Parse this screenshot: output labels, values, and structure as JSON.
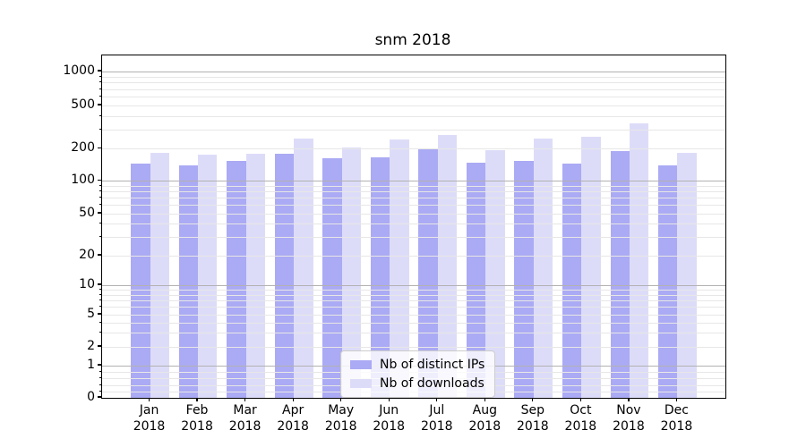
{
  "chart_data": {
    "type": "bar",
    "title": "snm 2018",
    "categories": [
      "Jan 2018",
      "Feb 2018",
      "Mar 2018",
      "Apr 2018",
      "May 2018",
      "Jun 2018",
      "Jul 2018",
      "Aug 2018",
      "Sep 2018",
      "Oct 2018",
      "Nov 2018",
      "Dec 2018"
    ],
    "x_labels": [
      [
        "Jan",
        "2018"
      ],
      [
        "Feb",
        "2018"
      ],
      [
        "Mar",
        "2018"
      ],
      [
        "Apr",
        "2018"
      ],
      [
        "May",
        "2018"
      ],
      [
        "Jun",
        "2018"
      ],
      [
        "Jul",
        "2018"
      ],
      [
        "Aug",
        "2018"
      ],
      [
        "Sep",
        "2018"
      ],
      [
        "Oct",
        "2018"
      ],
      [
        "Nov",
        "2018"
      ],
      [
        "Dec",
        "2018"
      ]
    ],
    "series": [
      {
        "name": "Nb of distinct IPs",
        "color": "#abaaf4",
        "values": [
          146,
          140,
          154,
          180,
          164,
          166,
          203,
          147,
          154,
          146,
          192,
          140
        ]
      },
      {
        "name": "Nb of downloads",
        "color": "#dddcf8",
        "values": [
          183,
          175,
          180,
          250,
          207,
          245,
          270,
          195,
          250,
          256,
          343,
          183
        ]
      }
    ],
    "y_axis": {
      "scale": "symlog",
      "ticks": [
        1000,
        500,
        200,
        100,
        50,
        20,
        10,
        5,
        2,
        1,
        0
      ],
      "ylim": [
        0,
        1000
      ]
    },
    "legend": {
      "position": "lower center",
      "entries": [
        "Nb of distinct IPs",
        "Nb of downloads"
      ]
    },
    "grid": {
      "major": true,
      "minor": true
    },
    "colors": {
      "bar_dark": "#abaaf4",
      "bar_light": "#dddcf8",
      "major_grid": "#b2b2b2",
      "minor_grid": "#e7e7e7",
      "spine": "#000000",
      "background": "#ffffff",
      "text": "#000000"
    }
  }
}
